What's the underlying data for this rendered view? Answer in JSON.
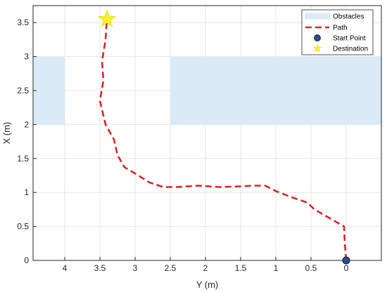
{
  "chart_data": {
    "type": "line",
    "xlabel": "Y (m)",
    "ylabel": "X (m)",
    "x_axis_reversed": true,
    "xlim": [
      -0.5,
      4.45
    ],
    "ylim": [
      0,
      3.75
    ],
    "x_ticks": [
      4,
      3.5,
      3,
      2.5,
      2,
      1.5,
      1,
      0.5,
      0
    ],
    "y_ticks": [
      0,
      0.5,
      1,
      1.5,
      2,
      2.5,
      3,
      3.5
    ],
    "x_tick_labels": [
      "4",
      "3.5",
      "3",
      "2.5",
      "2",
      "1.5",
      "1",
      "0.5",
      "0"
    ],
    "y_tick_labels": [
      "0",
      "0.5",
      "1",
      "1.5",
      "2",
      "2.5",
      "3",
      "3.5"
    ],
    "grid": true,
    "legend_position": "top-right",
    "obstacles": {
      "name": "Obstacles",
      "color": "#dbeaf7",
      "rects": [
        {
          "y_from": 4.45,
          "y_to": 4.0,
          "x_from": 2.0,
          "x_to": 3.0
        },
        {
          "y_from": 2.5,
          "y_to": -0.5,
          "x_from": 2.0,
          "x_to": 3.0
        }
      ]
    },
    "series": [
      {
        "name": "Path",
        "style": "dashed",
        "color": "#d62728",
        "points": [
          [
            0.0,
            0.0
          ],
          [
            0.02,
            0.25
          ],
          [
            0.03,
            0.5
          ],
          [
            0.2,
            0.6
          ],
          [
            0.45,
            0.75
          ],
          [
            0.55,
            0.85
          ],
          [
            0.75,
            0.92
          ],
          [
            1.0,
            1.02
          ],
          [
            1.15,
            1.1
          ],
          [
            1.3,
            1.1
          ],
          [
            1.5,
            1.09
          ],
          [
            1.8,
            1.08
          ],
          [
            2.1,
            1.1
          ],
          [
            2.4,
            1.08
          ],
          [
            2.6,
            1.08
          ],
          [
            2.8,
            1.15
          ],
          [
            3.0,
            1.28
          ],
          [
            3.15,
            1.37
          ],
          [
            3.25,
            1.55
          ],
          [
            3.3,
            1.78
          ],
          [
            3.42,
            2.0
          ],
          [
            3.5,
            2.35
          ],
          [
            3.45,
            2.65
          ],
          [
            3.47,
            2.93
          ],
          [
            3.42,
            3.25
          ],
          [
            3.4,
            3.55
          ]
        ]
      }
    ],
    "start_point": {
      "name": "Start Point",
      "y": 0.0,
      "x": 0.0,
      "color": "#2b4e8e"
    },
    "destination": {
      "name": "Destination",
      "y": 3.4,
      "x": 3.55,
      "color": "#f5f02a"
    },
    "legend": {
      "obstacles_label": "Obstacles",
      "path_label": "Path",
      "start_label": "Start Point",
      "destination_label": "Destination"
    }
  }
}
